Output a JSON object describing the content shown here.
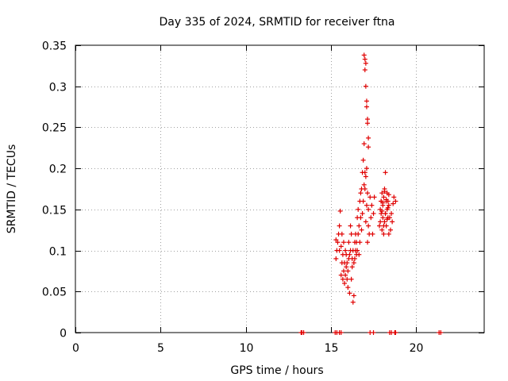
{
  "chart_data": {
    "type": "scatter",
    "title": "Day 335 of 2024, SRMTID for receiver ftna",
    "xlabel": "GPS time / hours",
    "ylabel": "SRMTID / TECUs",
    "xlim": [
      0,
      24
    ],
    "ylim": [
      0,
      0.35
    ],
    "xticks": [
      0,
      5,
      10,
      15,
      20
    ],
    "yticks": [
      0,
      0.05,
      0.1,
      0.15,
      0.2,
      0.25,
      0.3,
      0.35
    ],
    "xtick_labels": [
      "0",
      "5",
      "10",
      "15",
      "20"
    ],
    "ytick_labels": [
      "0",
      "0.05",
      "0.1",
      "0.15",
      "0.2",
      "0.25",
      "0.3",
      "0.35"
    ],
    "grid": true,
    "marker": "+",
    "marker_color": "#e00000",
    "series": [
      {
        "x": [
          13.25,
          13.3,
          13.4,
          15.25,
          15.35,
          15.5,
          15.6,
          17.3,
          17.5,
          18.45,
          18.55,
          18.75,
          18.8,
          21.35,
          21.45,
          15.3,
          15.3,
          15.35,
          15.4,
          15.45,
          15.5,
          15.5,
          15.55,
          15.6,
          15.6,
          15.65,
          15.65,
          15.7,
          15.7,
          15.75,
          15.75,
          15.8,
          15.8,
          15.85,
          15.85,
          15.9,
          15.9,
          15.95,
          15.95,
          16.0,
          16.0,
          16.05,
          16.05,
          16.1,
          16.1,
          16.15,
          16.15,
          16.2,
          16.2,
          16.25,
          16.25,
          16.3,
          16.3,
          16.35,
          16.35,
          16.4,
          16.4,
          16.45,
          16.45,
          16.5,
          16.5,
          16.55,
          16.55,
          16.6,
          16.6,
          16.65,
          16.65,
          16.7,
          16.7,
          16.75,
          16.75,
          16.8,
          16.8,
          16.85,
          16.85,
          16.9,
          16.9,
          16.95,
          16.95,
          17.0,
          17.0,
          17.05,
          17.05,
          17.1,
          17.1,
          17.15,
          17.15,
          17.2,
          17.2,
          17.25,
          17.3,
          17.35,
          17.4,
          17.45,
          17.5,
          17.55,
          16.95,
          17.0,
          17.0,
          17.05,
          17.05,
          17.1,
          17.1,
          17.15,
          17.15,
          17.2,
          17.2,
          17.85,
          17.9,
          17.9,
          17.95,
          17.95,
          18.0,
          18.0,
          18.05,
          18.05,
          18.1,
          18.1,
          18.15,
          18.15,
          18.2,
          18.2,
          18.25,
          18.25,
          18.3,
          18.3,
          18.35,
          18.35,
          18.4,
          18.4,
          18.45,
          18.5,
          18.55,
          18.6,
          18.65,
          18.7,
          18.8,
          17.95,
          18.0,
          18.05,
          18.1,
          18.15,
          18.2,
          18.25,
          18.3,
          18.35,
          18.4
        ],
        "y": [
          0,
          0,
          0,
          0,
          0,
          0,
          0,
          0,
          0,
          0,
          0,
          0,
          0,
          0,
          0,
          0.09,
          0.113,
          0.1,
          0.11,
          0.12,
          0.1,
          0.13,
          0.148,
          0.07,
          0.105,
          0.085,
          0.12,
          0.065,
          0.095,
          0.075,
          0.11,
          0.06,
          0.085,
          0.07,
          0.1,
          0.08,
          0.095,
          0.065,
          0.085,
          0.055,
          0.075,
          0.09,
          0.11,
          0.048,
          0.095,
          0.13,
          0.1,
          0.065,
          0.12,
          0.08,
          0.09,
          0.037,
          0.1,
          0.045,
          0.085,
          0.09,
          0.11,
          0.1,
          0.12,
          0.11,
          0.095,
          0.14,
          0.1,
          0.12,
          0.15,
          0.095,
          0.13,
          0.11,
          0.16,
          0.14,
          0.17,
          0.125,
          0.175,
          0.145,
          0.195,
          0.16,
          0.21,
          0.18,
          0.23,
          0.175,
          0.195,
          0.135,
          0.19,
          0.155,
          0.2,
          0.11,
          0.17,
          0.13,
          0.15,
          0.12,
          0.165,
          0.14,
          0.155,
          0.12,
          0.145,
          0.165,
          0.338,
          0.333,
          0.32,
          0.328,
          0.3,
          0.282,
          0.275,
          0.26,
          0.255,
          0.237,
          0.226,
          0.13,
          0.15,
          0.135,
          0.16,
          0.145,
          0.125,
          0.17,
          0.14,
          0.155,
          0.12,
          0.165,
          0.135,
          0.175,
          0.145,
          0.195,
          0.16,
          0.13,
          0.15,
          0.17,
          0.14,
          0.16,
          0.12,
          0.155,
          0.14,
          0.125,
          0.145,
          0.135,
          0.157,
          0.165,
          0.16,
          0.16,
          0.148,
          0.158,
          0.13,
          0.172,
          0.145,
          0.162,
          0.138,
          0.152,
          0.168
        ]
      }
    ]
  }
}
